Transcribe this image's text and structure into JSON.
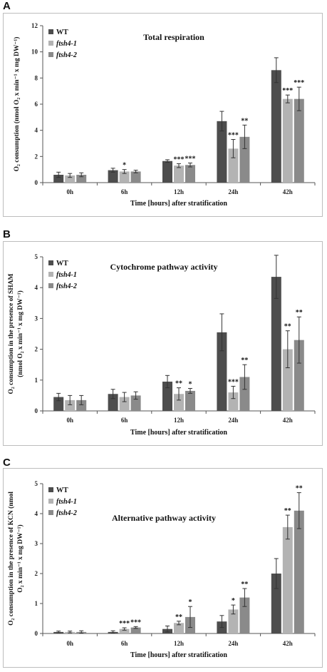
{
  "colors": {
    "WT": "#4d4d4d",
    "ftsh4-1": "#b3b3b3",
    "ftsh4-2": "#8a8a8a",
    "error": "#333333",
    "axis": "#555555"
  },
  "chart_data": [
    {
      "panel": "A",
      "type": "bar",
      "title": "Total respiration",
      "xlabel": "Time [hours] after stratification",
      "ylabel": [
        "O₂ consumption (nmol O₂ x min⁻¹ x mg DW⁻¹)"
      ],
      "ylim": [
        0,
        12
      ],
      "yticks": [
        0,
        2,
        4,
        6,
        8,
        10,
        12
      ],
      "categories": [
        "0h",
        "6h",
        "12h",
        "24h",
        "42h"
      ],
      "legend_position": "top-left",
      "series": [
        {
          "name": "WT",
          "values": [
            0.6,
            0.95,
            1.65,
            4.7,
            8.6
          ],
          "errors": [
            0.2,
            0.15,
            0.1,
            0.75,
            0.95
          ],
          "sig": [
            "",
            "",
            "",
            "",
            ""
          ]
        },
        {
          "name": "ftsh4-1",
          "values": [
            0.55,
            0.85,
            1.3,
            2.6,
            6.4
          ],
          "errors": [
            0.15,
            0.15,
            0.15,
            0.7,
            0.3
          ],
          "sig": [
            "",
            "*",
            "***",
            "***",
            "***"
          ]
        },
        {
          "name": "ftsh4-2",
          "values": [
            0.6,
            0.85,
            1.35,
            3.5,
            6.4
          ],
          "errors": [
            0.15,
            0.1,
            0.15,
            0.9,
            0.9
          ],
          "sig": [
            "",
            "",
            "***",
            "**",
            "***"
          ]
        }
      ]
    },
    {
      "panel": "B",
      "type": "bar",
      "title": "Cytochrome pathway activity",
      "xlabel": "Time [hours] after stratification",
      "ylabel": [
        "O₂ consumption in the presence of SHAM",
        "(nmol O₂ x min⁻¹ x mg DW⁻¹)"
      ],
      "ylim": [
        0,
        5
      ],
      "yticks": [
        0,
        1,
        2,
        3,
        4,
        5
      ],
      "categories": [
        "0h",
        "6h",
        "12h",
        "24h",
        "42h"
      ],
      "legend_position": "top-left",
      "series": [
        {
          "name": "WT",
          "values": [
            0.45,
            0.55,
            0.95,
            2.55,
            4.35
          ],
          "errors": [
            0.12,
            0.15,
            0.2,
            0.6,
            0.7
          ],
          "sig": [
            "",
            "",
            "",
            "",
            ""
          ]
        },
        {
          "name": "ftsh4-1",
          "values": [
            0.35,
            0.45,
            0.55,
            0.6,
            2.0
          ],
          "errors": [
            0.15,
            0.15,
            0.2,
            0.2,
            0.6
          ],
          "sig": [
            "",
            "",
            "**",
            "***",
            "**"
          ]
        },
        {
          "name": "ftsh4-2",
          "values": [
            0.35,
            0.5,
            0.65,
            1.1,
            2.3
          ],
          "errors": [
            0.15,
            0.12,
            0.08,
            0.4,
            0.75
          ],
          "sig": [
            "",
            "",
            "*",
            "**",
            "**"
          ]
        }
      ]
    },
    {
      "panel": "C",
      "type": "bar",
      "title": "Alternative pathway activity",
      "xlabel": "Time [hours] after stratification",
      "ylabel": [
        "O₂ consumption in the presence of KCN (nmol",
        "O₂ x min⁻¹ x mg DW⁻¹)"
      ],
      "ylim": [
        0,
        5
      ],
      "yticks": [
        0,
        1,
        2,
        3,
        4,
        5
      ],
      "categories": [
        "0h",
        "6h",
        "12h",
        "24h",
        "42h"
      ],
      "legend_position": "top-left",
      "series": [
        {
          "name": "WT",
          "values": [
            0.05,
            0.05,
            0.15,
            0.4,
            2.0
          ],
          "errors": [
            0.03,
            0.04,
            0.1,
            0.2,
            0.5
          ],
          "sig": [
            "",
            "",
            "",
            "",
            ""
          ]
        },
        {
          "name": "ftsh4-1",
          "values": [
            0.05,
            0.15,
            0.35,
            0.8,
            3.55
          ],
          "errors": [
            0.03,
            0.04,
            0.06,
            0.15,
            0.4
          ],
          "sig": [
            "",
            "***",
            "**",
            "*",
            "**"
          ]
        },
        {
          "name": "ftsh4-2",
          "values": [
            0.05,
            0.2,
            0.55,
            1.2,
            4.1
          ],
          "errors": [
            0.04,
            0.03,
            0.35,
            0.3,
            0.6
          ],
          "sig": [
            "",
            "***",
            "*",
            "**",
            "**"
          ]
        }
      ]
    }
  ]
}
